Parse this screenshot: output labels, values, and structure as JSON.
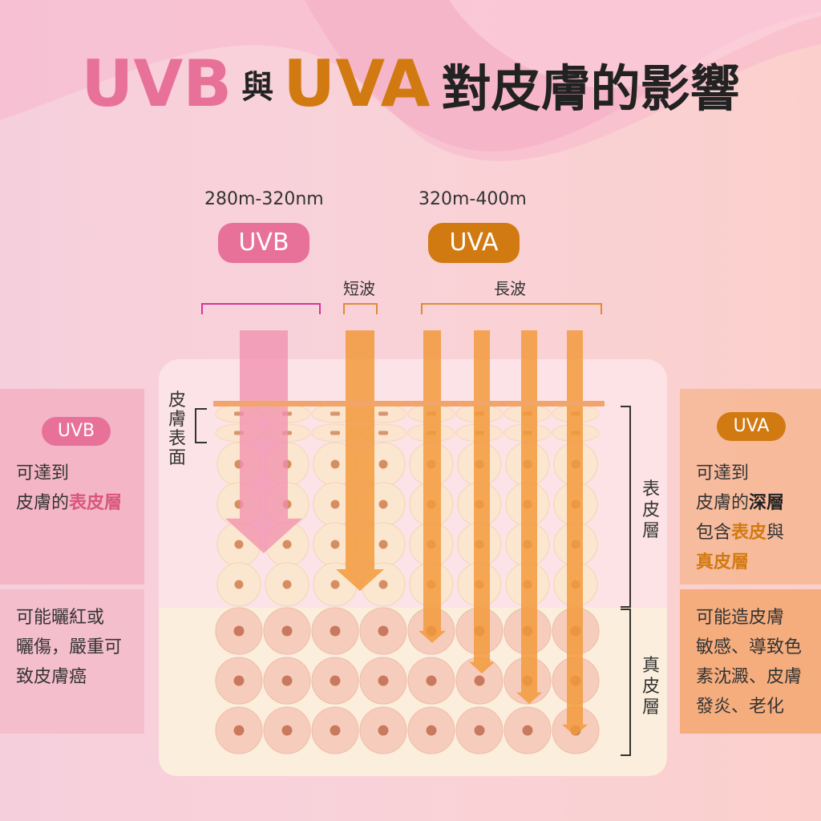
{
  "title": {
    "uvb": "UVB",
    "yu": "與",
    "uva": "UVA",
    "rest": "對皮膚的影響"
  },
  "uvb_range": "280m-320nm",
  "uva_range": "320m-400m",
  "uvb_pill": "UVB",
  "uva_pill": "UVA",
  "short_wave": "短波",
  "long_wave": "長波",
  "skin_surface": [
    "皮",
    "膚",
    "表",
    "面"
  ],
  "epidermis": [
    "表",
    "皮",
    "層"
  ],
  "dermis": [
    "真",
    "皮",
    "層"
  ],
  "left": {
    "pill": "UVB",
    "reach_1": "可達到",
    "reach_2a": "皮膚的",
    "reach_2b": "表皮層",
    "effect": [
      "可能曬紅或",
      "曬傷，嚴重可",
      "致皮膚癌"
    ]
  },
  "right": {
    "pill": "UVA",
    "reach_1": "可達到",
    "reach_2a": "皮膚的",
    "reach_2b": "深層",
    "reach_3a": "包含",
    "reach_3b": "表皮",
    "reach_3c": "與",
    "reach_4": "真皮層",
    "effect": [
      "可能造皮膚",
      "敏感、導致色",
      "素沈澱、皮膚",
      "發炎、老化"
    ]
  },
  "colors": {
    "uvb": "#e8719a",
    "uva": "#d27a12",
    "left_bg": "#f3b2c3",
    "right_bg": "#f6b897"
  }
}
